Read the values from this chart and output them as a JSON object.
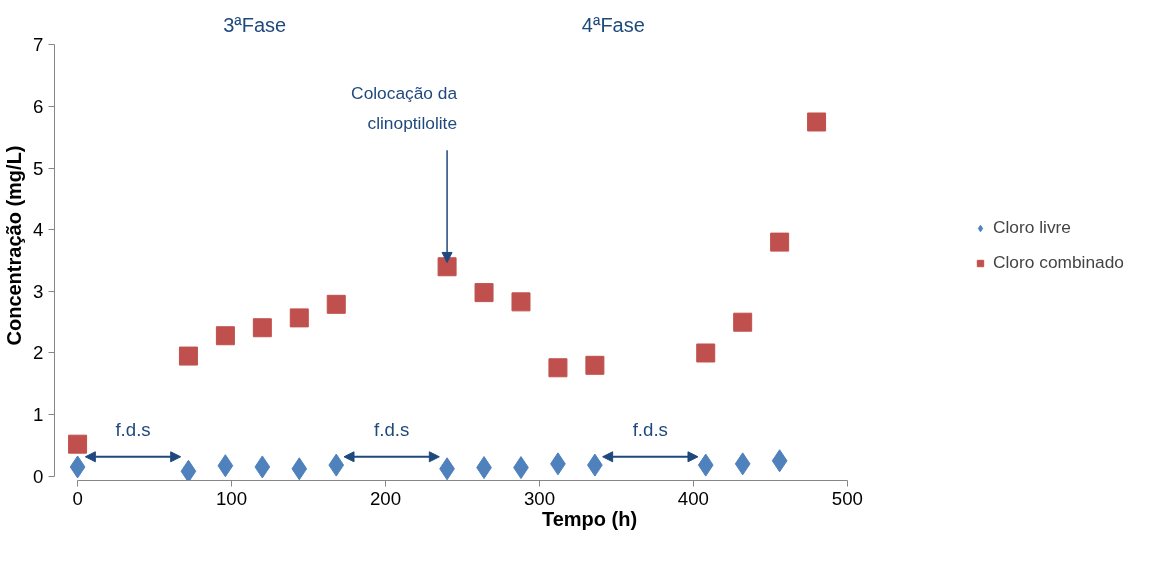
{
  "chart_data": {
    "type": "scatter",
    "xlabel": "Tempo (h)",
    "ylabel": "Concentração (mg/L)",
    "x": [
      0,
      72,
      96,
      120,
      144,
      168,
      240,
      264,
      288,
      312,
      336,
      408,
      432,
      456,
      480
    ],
    "series": [
      {
        "name": "Cloro livre",
        "color": "#4f81bd",
        "marker": "diamond",
        "values": [
          0.15,
          0.08,
          0.17,
          0.15,
          0.12,
          0.18,
          0.12,
          0.14,
          0.14,
          0.2,
          0.18,
          0.18,
          0.2,
          0.25,
          null
        ]
      },
      {
        "name": "Cloro combinado",
        "color": "#c0504d",
        "marker": "square",
        "values": [
          0.52,
          1.95,
          2.28,
          2.41,
          2.57,
          2.79,
          3.4,
          2.98,
          2.83,
          1.76,
          1.8,
          2.0,
          2.5,
          3.8,
          5.75
        ]
      }
    ],
    "xlim": [
      0,
      500
    ],
    "xticks": [
      0,
      100,
      200,
      300,
      400,
      500
    ],
    "ylim": [
      0,
      7
    ],
    "yticks": [
      0,
      1,
      2,
      3,
      4,
      5,
      6,
      7
    ],
    "grid": false,
    "legend": "right",
    "annotations": [
      "3ªFase",
      "4ªFase",
      "f.d.s",
      "f.d.s",
      "f.d.s",
      {
        "text": "Colocação da\nclinoptilolite",
        "x": 240,
        "y": 3.4
      }
    ]
  }
}
